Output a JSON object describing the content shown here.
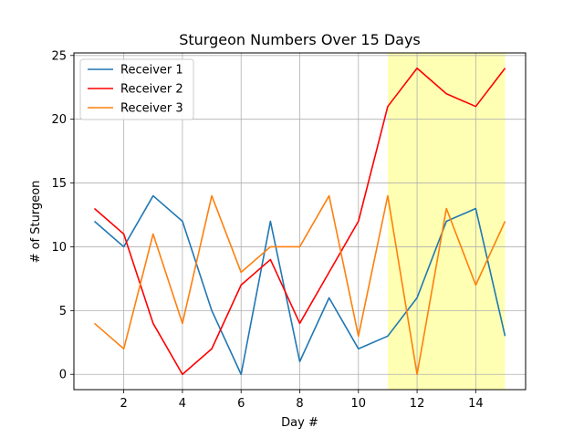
{
  "chart_data": {
    "type": "line",
    "title": "Sturgeon Numbers Over 15 Days",
    "xlabel": "Day #",
    "ylabel": "# of Sturgeon",
    "x": [
      1,
      2,
      3,
      4,
      5,
      6,
      7,
      8,
      9,
      10,
      11,
      12,
      13,
      14,
      15
    ],
    "xlim": [
      0.3,
      15.7
    ],
    "ylim": [
      -1.2,
      25.2
    ],
    "xticks": [
      2,
      4,
      6,
      8,
      10,
      12,
      14
    ],
    "yticks": [
      0,
      5,
      10,
      15,
      20,
      25
    ],
    "grid": true,
    "legend_position": "top-left",
    "highlight": {
      "x_start": 11,
      "x_end": 15,
      "color": "#ffffb3"
    },
    "series": [
      {
        "name": "Receiver 1",
        "color": "#1f77b4",
        "values": [
          12,
          10,
          14,
          12,
          5,
          0,
          12,
          1,
          6,
          2,
          3,
          6,
          12,
          13,
          3
        ]
      },
      {
        "name": "Receiver 2",
        "color": "#ff0000",
        "values": [
          13,
          11,
          4,
          0,
          2,
          7,
          9,
          4,
          8,
          12,
          21,
          24,
          22,
          21,
          24
        ]
      },
      {
        "name": "Receiver 3",
        "color": "#ff7f0e",
        "values": [
          4,
          2,
          11,
          4,
          14,
          8,
          10,
          10,
          14,
          3,
          14,
          0,
          13,
          7,
          12
        ]
      }
    ]
  }
}
